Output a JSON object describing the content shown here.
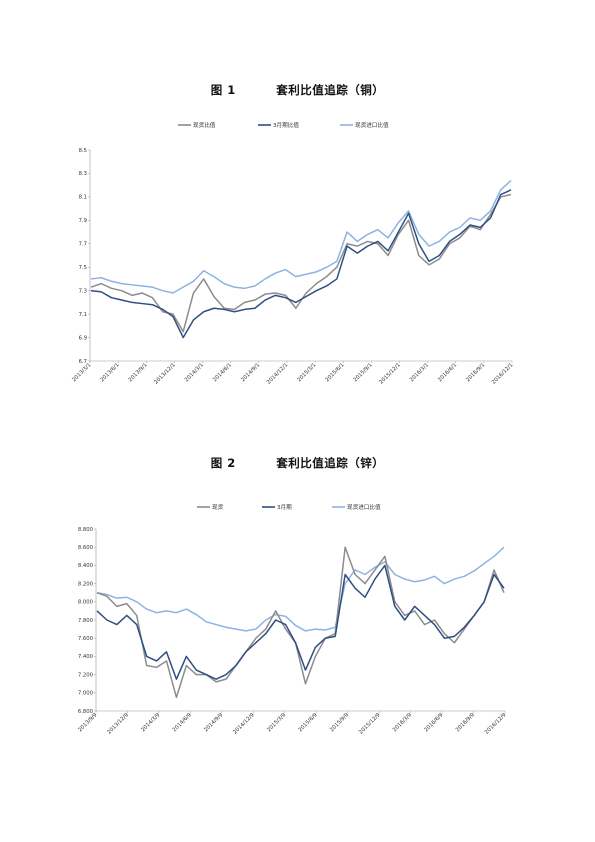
{
  "figures": [
    {
      "label": "图 1",
      "title": "套利比值追踪（铜）"
    },
    {
      "label": "图 2",
      "title": "套利比值追踪（锌）"
    }
  ],
  "chart_data": [
    {
      "type": "line",
      "title": "套利比值追踪（铜）",
      "x_ticks": [
        "2013/3/1",
        "2013/6/1",
        "2013/9/1",
        "2013/12/1",
        "2014/3/1",
        "2014/6/1",
        "2014/9/1",
        "2014/12/1",
        "2015/3/1",
        "2015/6/1",
        "2015/9/1",
        "2015/12/1",
        "2016/3/1",
        "2016/6/1",
        "2016/9/1",
        "2016/12/1"
      ],
      "y_ticks": [
        "6.7",
        "6.9",
        "7.1",
        "7.3",
        "7.5",
        "7.7",
        "7.9",
        "8.1",
        "8.3",
        "8.5"
      ],
      "ylim": [
        6.7,
        8.5
      ],
      "legend_position": "top",
      "series": [
        {
          "name": "现货比值",
          "color": "#8c8c8c",
          "values": [
            7.33,
            7.36,
            7.32,
            7.3,
            7.26,
            7.28,
            7.24,
            7.12,
            7.1,
            6.95,
            7.28,
            7.4,
            7.25,
            7.15,
            7.14,
            7.2,
            7.22,
            7.27,
            7.28,
            7.26,
            7.15,
            7.28,
            7.36,
            7.42,
            7.5,
            7.7,
            7.68,
            7.72,
            7.7,
            7.6,
            7.78,
            7.9,
            7.6,
            7.52,
            7.57,
            7.7,
            7.75,
            7.85,
            7.82,
            7.95,
            8.1,
            8.12
          ]
        },
        {
          "name": "3月期比值",
          "color": "#2f4f82",
          "values": [
            7.3,
            7.29,
            7.24,
            7.22,
            7.2,
            7.19,
            7.18,
            7.14,
            7.08,
            6.9,
            7.05,
            7.12,
            7.15,
            7.14,
            7.12,
            7.14,
            7.15,
            7.22,
            7.26,
            7.24,
            7.2,
            7.25,
            7.3,
            7.34,
            7.4,
            7.68,
            7.62,
            7.68,
            7.72,
            7.64,
            7.8,
            7.96,
            7.7,
            7.55,
            7.6,
            7.72,
            7.78,
            7.86,
            7.84,
            7.92,
            8.12,
            8.16
          ]
        },
        {
          "name": "现货进口比值",
          "color": "#8db3e2",
          "values": [
            7.4,
            7.41,
            7.38,
            7.36,
            7.35,
            7.34,
            7.33,
            7.3,
            7.28,
            7.33,
            7.38,
            7.47,
            7.42,
            7.36,
            7.33,
            7.32,
            7.34,
            7.4,
            7.45,
            7.48,
            7.42,
            7.44,
            7.46,
            7.5,
            7.55,
            7.8,
            7.72,
            7.78,
            7.82,
            7.75,
            7.88,
            7.98,
            7.78,
            7.68,
            7.72,
            7.8,
            7.84,
            7.92,
            7.9,
            7.98,
            8.16,
            8.24
          ]
        }
      ]
    },
    {
      "type": "line",
      "title": "套利比值追踪（锌）",
      "x_ticks": [
        "2013/9/9",
        "2013/12/9",
        "2014/3/9",
        "2014/6/9",
        "2014/9/9",
        "2014/12/9",
        "2015/3/9",
        "2015/6/9",
        "2015/9/9",
        "2015/12/9",
        "2016/3/9",
        "2016/6/9",
        "2016/9/9",
        "2016/12/9"
      ],
      "y_ticks": [
        "6.800",
        "7.000",
        "7.200",
        "7.400",
        "7.600",
        "7.800",
        "8.000",
        "8.200",
        "8.400",
        "8.600",
        "8.800"
      ],
      "ylim": [
        6.8,
        8.8
      ],
      "legend_position": "top",
      "series": [
        {
          "name": "现货",
          "color": "#8c8c8c",
          "values": [
            8.1,
            8.06,
            7.95,
            7.98,
            7.85,
            7.3,
            7.28,
            7.35,
            6.95,
            7.3,
            7.2,
            7.2,
            7.12,
            7.15,
            7.3,
            7.45,
            7.6,
            7.7,
            7.9,
            7.7,
            7.55,
            7.1,
            7.4,
            7.6,
            7.65,
            8.6,
            8.3,
            8.2,
            8.35,
            8.5,
            8.0,
            7.85,
            7.9,
            7.75,
            7.8,
            7.65,
            7.55,
            7.7,
            7.85,
            8.0,
            8.35,
            8.1
          ]
        },
        {
          "name": "3月期",
          "color": "#2f4f82",
          "values": [
            7.9,
            7.8,
            7.75,
            7.85,
            7.75,
            7.4,
            7.35,
            7.45,
            7.15,
            7.4,
            7.25,
            7.2,
            7.15,
            7.2,
            7.3,
            7.45,
            7.55,
            7.65,
            7.8,
            7.75,
            7.55,
            7.25,
            7.5,
            7.6,
            7.62,
            8.3,
            8.15,
            8.05,
            8.25,
            8.4,
            7.95,
            7.8,
            7.95,
            7.85,
            7.75,
            7.6,
            7.62,
            7.72,
            7.85,
            8.0,
            8.3,
            8.15
          ]
        },
        {
          "name": "现货进口比值",
          "color": "#8db3e2",
          "values": [
            8.1,
            8.08,
            8.04,
            8.05,
            8.0,
            7.92,
            7.88,
            7.9,
            7.88,
            7.92,
            7.86,
            7.78,
            7.75,
            7.72,
            7.7,
            7.68,
            7.7,
            7.8,
            7.86,
            7.84,
            7.74,
            7.68,
            7.7,
            7.69,
            7.72,
            8.2,
            8.35,
            8.3,
            8.38,
            8.44,
            8.3,
            8.25,
            8.22,
            8.24,
            8.28,
            8.2,
            8.25,
            8.28,
            8.34,
            8.42,
            8.5,
            8.6
          ]
        }
      ]
    }
  ]
}
